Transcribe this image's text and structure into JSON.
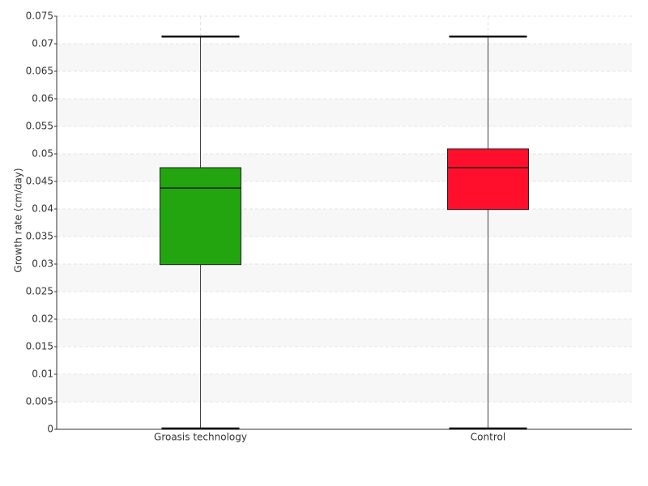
{
  "chart_data": {
    "type": "box",
    "y_label": "Growth rate (cm/day)",
    "categories": [
      "Groasis technology",
      "Control"
    ],
    "boxes": [
      {
        "low": 0,
        "q1": 0.0299,
        "median": 0.0438,
        "q3": 0.0475,
        "high": 0.0713,
        "color": "#22a50f"
      },
      {
        "low": 0,
        "q1": 0.0399,
        "median": 0.0475,
        "q3": 0.0509,
        "high": 0.0713,
        "color": "#ff0f2b"
      }
    ],
    "ylim": [
      0,
      0.075
    ],
    "yticks": [
      0,
      0.005,
      0.01,
      0.015,
      0.02,
      0.025,
      0.03,
      0.035,
      0.04,
      0.045,
      0.05,
      0.055,
      0.06,
      0.065,
      0.07,
      0.075
    ],
    "grid": true,
    "alternate_bands": true
  }
}
